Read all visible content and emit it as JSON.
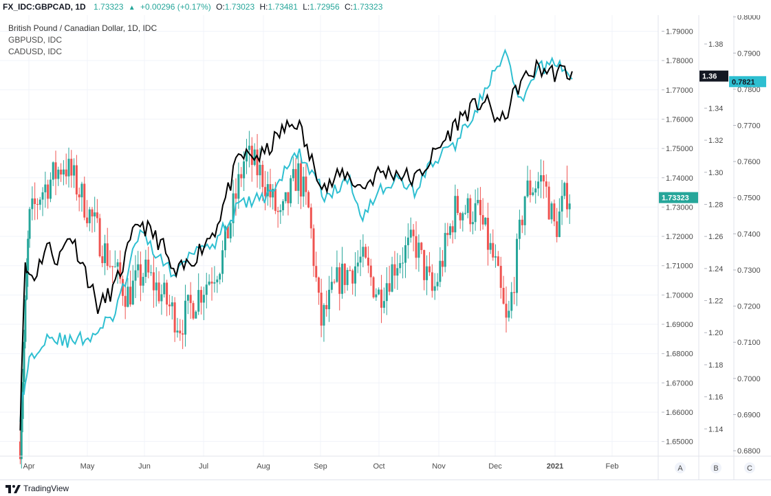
{
  "header": {
    "symbol": "FX_IDC:GBPCAD, 1D",
    "last": "1.73323",
    "change": "+0.00296 (+0.17%)",
    "o_label": "O:",
    "o": "1.73023",
    "h_label": "H:",
    "h": "1.73481",
    "l_label": "L:",
    "l": "1.72956",
    "c_label": "C:",
    "c": "1.73323"
  },
  "legend": {
    "main": "British Pound / Canadian Dollar, 1D, IDC",
    "s1": "GBPUSD, IDC",
    "s2": "CADUSD, IDC"
  },
  "footer": {
    "brand": "TradingView"
  },
  "colors": {
    "up": "#26a69a",
    "down": "#ef5350",
    "gbpusd": "#000000",
    "cadusd": "#2ebfd1",
    "grid": "#f0f3fa"
  },
  "chart_data": {
    "type": "candlestick",
    "title": "British Pound / Canadian Dollar, 1D, IDC",
    "x_tick_labels": [
      "Apr",
      "May",
      "Jun",
      "Jul",
      "Aug",
      "Sep",
      "Oct",
      "Nov",
      "Dec",
      "2021",
      "Feb"
    ],
    "axis_a": {
      "name": "GBPCAD",
      "ylim": [
        1.645,
        1.7955
      ],
      "ticks": [
        "1.79000",
        "1.78000",
        "1.77000",
        "1.76000",
        "1.75000",
        "1.74000",
        "1.73000",
        "1.72000",
        "1.71000",
        "1.70000",
        "1.69000",
        "1.68000",
        "1.67000",
        "1.66000",
        "1.65000"
      ],
      "last_badge": "1.73323"
    },
    "axis_b": {
      "name": "GBPUSD",
      "ylim": [
        1.123,
        1.398
      ],
      "ticks": [
        "1.38",
        "1.36",
        "1.34",
        "1.32",
        "1.30",
        "1.28",
        "1.26",
        "1.24",
        "1.22",
        "1.20",
        "1.18",
        "1.16",
        "1.14"
      ],
      "last_badge": "1.36"
    },
    "axis_c": {
      "name": "CADUSD",
      "ylim": [
        0.6785,
        0.8005
      ],
      "ticks": [
        "0.8000",
        "0.7900",
        "0.7800",
        "0.7700",
        "0.7600",
        "0.7500",
        "0.7400",
        "0.7300",
        "0.7200",
        "0.7100",
        "0.7000",
        "0.6900",
        "0.6800"
      ],
      "last_badge": "0.7821"
    },
    "scale_labels": [
      "A",
      "B",
      "C"
    ],
    "gbpcad_close_keypoints": [
      {
        "m": 0.0,
        "v": 1.65
      },
      {
        "m": 0.3,
        "v": 1.725
      },
      {
        "m": 0.5,
        "v": 1.735
      },
      {
        "m": 0.9,
        "v": 1.745
      },
      {
        "m": 1.1,
        "v": 1.738
      },
      {
        "m": 1.4,
        "v": 1.725
      },
      {
        "m": 1.6,
        "v": 1.715
      },
      {
        "m": 2.0,
        "v": 1.7
      },
      {
        "m": 2.3,
        "v": 1.708
      },
      {
        "m": 2.6,
        "v": 1.7
      },
      {
        "m": 2.9,
        "v": 1.69
      },
      {
        "m": 3.2,
        "v": 1.7
      },
      {
        "m": 3.6,
        "v": 1.712
      },
      {
        "m": 4.0,
        "v": 1.748
      },
      {
        "m": 4.3,
        "v": 1.74
      },
      {
        "m": 4.6,
        "v": 1.725
      },
      {
        "m": 4.9,
        "v": 1.742
      },
      {
        "m": 5.1,
        "v": 1.728
      },
      {
        "m": 5.3,
        "v": 1.69
      },
      {
        "m": 5.6,
        "v": 1.705
      },
      {
        "m": 6.0,
        "v": 1.712
      },
      {
        "m": 6.3,
        "v": 1.7
      },
      {
        "m": 6.6,
        "v": 1.712
      },
      {
        "m": 6.9,
        "v": 1.718
      },
      {
        "m": 7.2,
        "v": 1.7
      },
      {
        "m": 7.6,
        "v": 1.73
      },
      {
        "m": 8.0,
        "v": 1.728
      },
      {
        "m": 8.3,
        "v": 1.71
      },
      {
        "m": 8.5,
        "v": 1.688
      },
      {
        "m": 8.8,
        "v": 1.735
      },
      {
        "m": 9.1,
        "v": 1.74
      },
      {
        "m": 9.3,
        "v": 1.722
      },
      {
        "m": 9.5,
        "v": 1.735
      },
      {
        "m": 9.6,
        "v": 1.733
      }
    ],
    "gbpusd_keypoints": [
      {
        "m": 0.0,
        "v": 1.145
      },
      {
        "m": 0.15,
        "v": 1.24
      },
      {
        "m": 0.4,
        "v": 1.235
      },
      {
        "m": 0.6,
        "v": 1.255
      },
      {
        "m": 0.8,
        "v": 1.245
      },
      {
        "m": 1.0,
        "v": 1.262
      },
      {
        "m": 1.2,
        "v": 1.245
      },
      {
        "m": 1.5,
        "v": 1.215
      },
      {
        "m": 1.8,
        "v": 1.23
      },
      {
        "m": 2.2,
        "v": 1.27
      },
      {
        "m": 2.6,
        "v": 1.255
      },
      {
        "m": 2.8,
        "v": 1.235
      },
      {
        "m": 3.1,
        "v": 1.245
      },
      {
        "m": 3.5,
        "v": 1.265
      },
      {
        "m": 3.9,
        "v": 1.31
      },
      {
        "m": 4.3,
        "v": 1.31
      },
      {
        "m": 4.6,
        "v": 1.325
      },
      {
        "m": 4.9,
        "v": 1.332
      },
      {
        "m": 5.1,
        "v": 1.31
      },
      {
        "m": 5.4,
        "v": 1.29
      },
      {
        "m": 5.7,
        "v": 1.3
      },
      {
        "m": 6.0,
        "v": 1.29
      },
      {
        "m": 6.3,
        "v": 1.3
      },
      {
        "m": 6.6,
        "v": 1.3
      },
      {
        "m": 6.9,
        "v": 1.295
      },
      {
        "m": 7.3,
        "v": 1.315
      },
      {
        "m": 7.7,
        "v": 1.335
      },
      {
        "m": 8.1,
        "v": 1.345
      },
      {
        "m": 8.4,
        "v": 1.33
      },
      {
        "m": 8.7,
        "v": 1.355
      },
      {
        "m": 9.0,
        "v": 1.365
      },
      {
        "m": 9.3,
        "v": 1.362
      },
      {
        "m": 9.5,
        "v": 1.363
      },
      {
        "m": 9.6,
        "v": 1.36
      }
    ],
    "cadusd_keypoints": [
      {
        "m": 0.0,
        "v": 0.69
      },
      {
        "m": 0.3,
        "v": 0.705
      },
      {
        "m": 0.6,
        "v": 0.712
      },
      {
        "m": 1.0,
        "v": 0.71
      },
      {
        "m": 1.4,
        "v": 0.712
      },
      {
        "m": 1.8,
        "v": 0.718
      },
      {
        "m": 2.2,
        "v": 0.74
      },
      {
        "m": 2.5,
        "v": 0.735
      },
      {
        "m": 2.8,
        "v": 0.728
      },
      {
        "m": 3.1,
        "v": 0.736
      },
      {
        "m": 3.5,
        "v": 0.738
      },
      {
        "m": 3.9,
        "v": 0.748
      },
      {
        "m": 4.3,
        "v": 0.75
      },
      {
        "m": 4.6,
        "v": 0.755
      },
      {
        "m": 4.9,
        "v": 0.763
      },
      {
        "m": 5.1,
        "v": 0.758
      },
      {
        "m": 5.4,
        "v": 0.75
      },
      {
        "m": 5.8,
        "v": 0.755
      },
      {
        "m": 6.0,
        "v": 0.745
      },
      {
        "m": 6.3,
        "v": 0.752
      },
      {
        "m": 6.6,
        "v": 0.755
      },
      {
        "m": 6.9,
        "v": 0.752
      },
      {
        "m": 7.2,
        "v": 0.76
      },
      {
        "m": 7.6,
        "v": 0.765
      },
      {
        "m": 7.9,
        "v": 0.773
      },
      {
        "m": 8.2,
        "v": 0.782
      },
      {
        "m": 8.5,
        "v": 0.79
      },
      {
        "m": 8.7,
        "v": 0.775
      },
      {
        "m": 9.0,
        "v": 0.785
      },
      {
        "m": 9.3,
        "v": 0.788
      },
      {
        "m": 9.5,
        "v": 0.785
      },
      {
        "m": 9.6,
        "v": 0.782
      }
    ]
  }
}
